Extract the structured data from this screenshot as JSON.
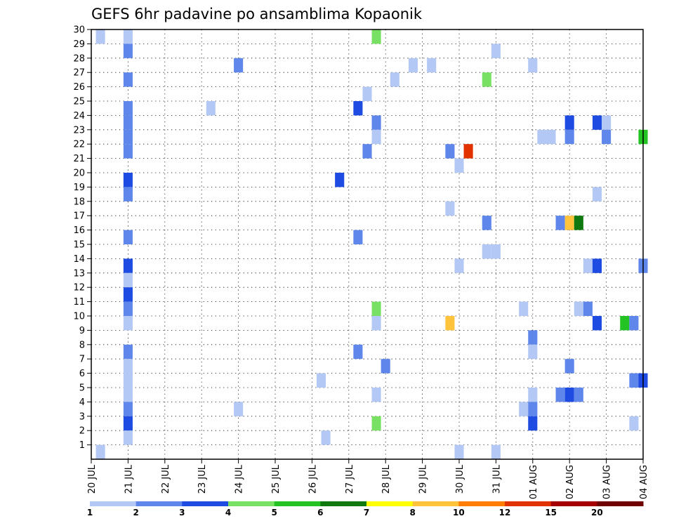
{
  "chart_data": {
    "type": "heatmap",
    "title": "GEFS 6hr padavine po ansamblima Kopaonik",
    "xlabel": "",
    "ylabel": "",
    "x_tick_labels": [
      "20 JUL",
      "21 JUL",
      "22 JUL",
      "23 JUL",
      "24 JUL",
      "25 JUL",
      "26 JUL",
      "27 JUL",
      "28 JUL",
      "29 JUL",
      "30 JUL",
      "31 JUL",
      "01 AUG",
      "02 AUG",
      "03 AUG",
      "04 AUG"
    ],
    "x_range_days": [
      0,
      15
    ],
    "y_tick_labels": [
      "1",
      "2",
      "3",
      "4",
      "5",
      "6",
      "7",
      "8",
      "9",
      "10",
      "11",
      "12",
      "13",
      "14",
      "15",
      "16",
      "17",
      "18",
      "19",
      "20",
      "21",
      "22",
      "23",
      "24",
      "25",
      "26",
      "27",
      "28",
      "29",
      "30"
    ],
    "y_range": [
      0,
      30
    ],
    "grid": true,
    "colorbar": {
      "boundaries": [
        "1",
        "2",
        "3",
        "4",
        "5",
        "6",
        "7",
        "8",
        "10",
        "12",
        "15",
        "20"
      ],
      "colors": [
        "#b4c8f5",
        "#5f87eb",
        "#1e4be1",
        "#78e164",
        "#23c323",
        "#0f780f",
        "#ffff00",
        "#ffc33c",
        "#ff7d00",
        "#e13200",
        "#a50000",
        "#6e0000"
      ]
    },
    "cells": [
      {
        "m": 30,
        "t": 0.25,
        "c": 1
      },
      {
        "m": 30,
        "t": 1.0,
        "c": 1
      },
      {
        "m": 30,
        "t": 7.75,
        "c": 4
      },
      {
        "m": 29,
        "t": 1.0,
        "c": 2
      },
      {
        "m": 29,
        "t": 11.0,
        "c": 1
      },
      {
        "m": 28,
        "t": 4.0,
        "c": 2
      },
      {
        "m": 28,
        "t": 8.75,
        "c": 1
      },
      {
        "m": 28,
        "t": 9.25,
        "c": 1
      },
      {
        "m": 28,
        "t": 12.0,
        "c": 1
      },
      {
        "m": 27,
        "t": 1.0,
        "c": 2
      },
      {
        "m": 27,
        "t": 8.25,
        "c": 1
      },
      {
        "m": 27,
        "t": 10.75,
        "c": 4
      },
      {
        "m": 26,
        "t": 7.5,
        "c": 1
      },
      {
        "m": 25,
        "t": 1.0,
        "c": 2
      },
      {
        "m": 25,
        "t": 3.25,
        "c": 1
      },
      {
        "m": 25,
        "t": 7.25,
        "c": 3
      },
      {
        "m": 24,
        "t": 1.0,
        "c": 2
      },
      {
        "m": 24,
        "t": 7.75,
        "c": 2
      },
      {
        "m": 24,
        "t": 13.0,
        "c": 3
      },
      {
        "m": 24,
        "t": 13.75,
        "c": 3
      },
      {
        "m": 24,
        "t": 14.0,
        "c": 1
      },
      {
        "m": 23,
        "t": 1.0,
        "c": 2
      },
      {
        "m": 23,
        "t": 7.75,
        "c": 1
      },
      {
        "m": 23,
        "t": 12.25,
        "c": 1
      },
      {
        "m": 23,
        "t": 12.5,
        "c": 1
      },
      {
        "m": 23,
        "t": 13.0,
        "c": 2
      },
      {
        "m": 23,
        "t": 14.0,
        "c": 2
      },
      {
        "m": 23,
        "t": 15.0,
        "c": 5
      },
      {
        "m": 22,
        "t": 1.0,
        "c": 2
      },
      {
        "m": 22,
        "t": 7.5,
        "c": 2
      },
      {
        "m": 22,
        "t": 9.75,
        "c": 2
      },
      {
        "m": 22,
        "t": 10.25,
        "c": 10
      },
      {
        "m": 21,
        "t": 10.0,
        "c": 1
      },
      {
        "m": 20,
        "t": 1.0,
        "c": 3
      },
      {
        "m": 20,
        "t": 6.75,
        "c": 3
      },
      {
        "m": 19,
        "t": 1.0,
        "c": 2
      },
      {
        "m": 19,
        "t": 13.75,
        "c": 1
      },
      {
        "m": 18,
        "t": 9.75,
        "c": 1
      },
      {
        "m": 17,
        "t": 10.75,
        "c": 2
      },
      {
        "m": 17,
        "t": 12.75,
        "c": 2
      },
      {
        "m": 17,
        "t": 13.0,
        "c": 8
      },
      {
        "m": 17,
        "t": 13.25,
        "c": 6
      },
      {
        "m": 16,
        "t": 1.0,
        "c": 2
      },
      {
        "m": 16,
        "t": 7.25,
        "c": 2
      },
      {
        "m": 15,
        "t": 10.75,
        "c": 1
      },
      {
        "m": 15,
        "t": 11.0,
        "c": 1
      },
      {
        "m": 14,
        "t": 1.0,
        "c": 3
      },
      {
        "m": 14,
        "t": 10.0,
        "c": 1
      },
      {
        "m": 14,
        "t": 13.5,
        "c": 1
      },
      {
        "m": 14,
        "t": 13.75,
        "c": 3
      },
      {
        "m": 14,
        "t": 15.0,
        "c": 2
      },
      {
        "m": 13,
        "t": 1.0,
        "c": 1
      },
      {
        "m": 12,
        "t": 1.0,
        "c": 3
      },
      {
        "m": 11,
        "t": 1.0,
        "c": 2
      },
      {
        "m": 11,
        "t": 7.75,
        "c": 4
      },
      {
        "m": 11,
        "t": 11.75,
        "c": 1
      },
      {
        "m": 11,
        "t": 13.25,
        "c": 1
      },
      {
        "m": 11,
        "t": 13.5,
        "c": 2
      },
      {
        "m": 10,
        "t": 1.0,
        "c": 1
      },
      {
        "m": 10,
        "t": 7.75,
        "c": 1
      },
      {
        "m": 10,
        "t": 9.75,
        "c": 8
      },
      {
        "m": 10,
        "t": 13.75,
        "c": 3
      },
      {
        "m": 10,
        "t": 14.5,
        "c": 5
      },
      {
        "m": 10,
        "t": 14.75,
        "c": 2
      },
      {
        "m": 9,
        "t": 12.0,
        "c": 2
      },
      {
        "m": 8,
        "t": 1.0,
        "c": 2
      },
      {
        "m": 8,
        "t": 7.25,
        "c": 2
      },
      {
        "m": 8,
        "t": 12.0,
        "c": 1
      },
      {
        "m": 7,
        "t": 1.0,
        "c": 1
      },
      {
        "m": 7,
        "t": 8.0,
        "c": 2
      },
      {
        "m": 7,
        "t": 13.0,
        "c": 2
      },
      {
        "m": 6,
        "t": 1.0,
        "c": 1
      },
      {
        "m": 6,
        "t": 6.25,
        "c": 1
      },
      {
        "m": 6,
        "t": 14.75,
        "c": 2
      },
      {
        "m": 6,
        "t": 15.0,
        "c": 3
      },
      {
        "m": 5,
        "t": 1.0,
        "c": 1
      },
      {
        "m": 5,
        "t": 7.75,
        "c": 1
      },
      {
        "m": 5,
        "t": 12.0,
        "c": 1
      },
      {
        "m": 5,
        "t": 12.75,
        "c": 2
      },
      {
        "m": 5,
        "t": 13.0,
        "c": 3
      },
      {
        "m": 5,
        "t": 13.25,
        "c": 2
      },
      {
        "m": 4,
        "t": 1.0,
        "c": 2
      },
      {
        "m": 4,
        "t": 4.0,
        "c": 1
      },
      {
        "m": 4,
        "t": 11.75,
        "c": 1
      },
      {
        "m": 4,
        "t": 12.0,
        "c": 2
      },
      {
        "m": 3,
        "t": 1.0,
        "c": 3
      },
      {
        "m": 3,
        "t": 7.75,
        "c": 4
      },
      {
        "m": 3,
        "t": 12.0,
        "c": 3
      },
      {
        "m": 3,
        "t": 14.75,
        "c": 1
      },
      {
        "m": 2,
        "t": 1.0,
        "c": 1
      },
      {
        "m": 2,
        "t": 6.375,
        "c": 1
      },
      {
        "m": 1,
        "t": 0.25,
        "c": 1
      },
      {
        "m": 1,
        "t": 10.0,
        "c": 1
      },
      {
        "m": 1,
        "t": 11.0,
        "c": 1
      }
    ]
  }
}
